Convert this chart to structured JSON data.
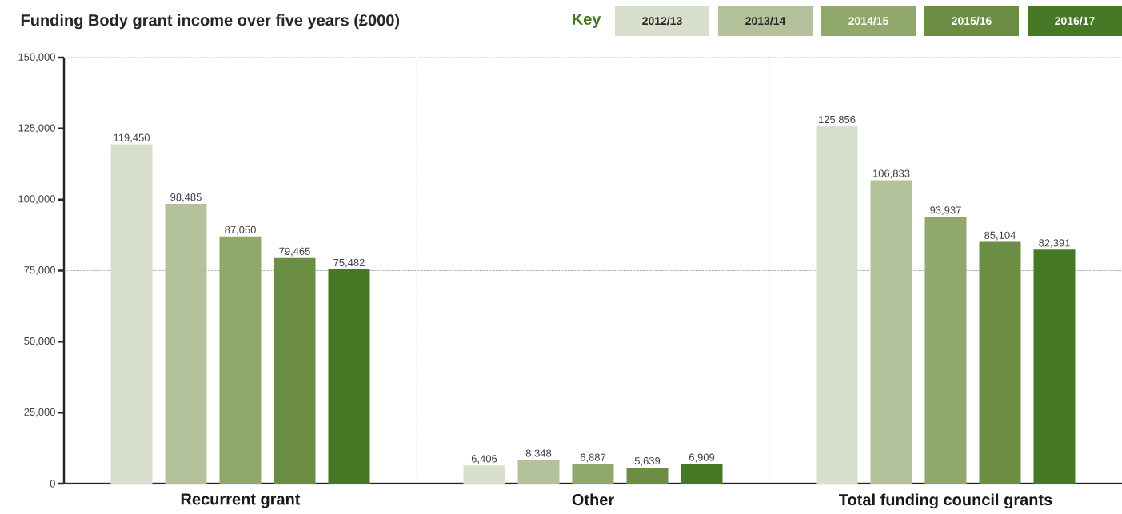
{
  "chart_data": {
    "type": "bar",
    "title": "Funding Body grant income over five years (£000)",
    "legend_title": "Key",
    "categories": [
      "Recurrent grant",
      "Other",
      "Total funding council grants"
    ],
    "series": [
      {
        "name": "2012/13",
        "color": "#d8dfcc",
        "values": [
          119450,
          6406,
          125856
        ],
        "value_labels": [
          "119,450",
          "6,406",
          "125,856"
        ]
      },
      {
        "name": "2013/14",
        "color": "#b3c29b",
        "values": [
          98485,
          8348,
          106833
        ],
        "value_labels": [
          "98,485",
          "8,348",
          "106,833"
        ]
      },
      {
        "name": "2014/15",
        "color": "#90a86c",
        "values": [
          87050,
          6887,
          93937
        ],
        "value_labels": [
          "87,050",
          "6,887",
          "93,937"
        ]
      },
      {
        "name": "2015/16",
        "color": "#6b8e44",
        "values": [
          79465,
          5639,
          85104
        ],
        "value_labels": [
          "79,465",
          "5,639",
          "85,104"
        ]
      },
      {
        "name": "2016/17",
        "color": "#467826",
        "values": [
          75482,
          6909,
          82391
        ],
        "value_labels": [
          "75,482",
          "6,909",
          "82,391"
        ]
      }
    ],
    "ylim": [
      0,
      150000
    ],
    "yticks": [
      0,
      {
        "value": 25000,
        "label": "25,000"
      },
      {
        "value": 50000,
        "label": "50,000"
      },
      {
        "value": 75000,
        "label": "75,000"
      },
      {
        "value": 100000,
        "label": "100,000"
      },
      {
        "value": 125000,
        "label": "125,000"
      },
      {
        "value": 150000,
        "label": "150,000"
      }
    ],
    "ref_lines": [
      {
        "axis": "y",
        "value": 75000,
        "line_style": "dotted",
        "color": "#666666"
      },
      {
        "axis": "y",
        "value": 150000,
        "line_style": "dotted",
        "color": "#666666"
      }
    ],
    "grid": "x",
    "legend": "top right"
  }
}
